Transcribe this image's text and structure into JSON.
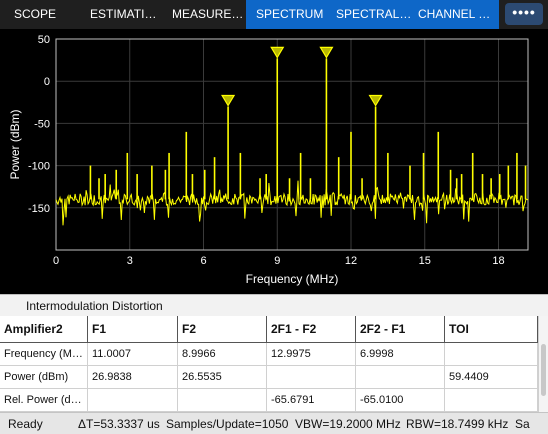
{
  "tabs": {
    "scope": "SCOPE",
    "estimation": "ESTIMATI…",
    "measurements": "MEASURE…",
    "spectrum": "SPECTRUM",
    "spectral_mask": "SPECTRAL…",
    "channel": "CHANNEL …",
    "more_icon": "more-horizontal-icon",
    "more_glyph": "••••"
  },
  "colors": {
    "trace": "#ffff00",
    "plot_bg": "#000000",
    "grid": "#3a3a3a",
    "active_tab": "#0e67c8"
  },
  "chart_data": {
    "type": "line",
    "xlabel": "Frequency (MHz)",
    "ylabel": "Power (dBm)",
    "xlim": [
      0,
      19.2
    ],
    "ylim": [
      -200,
      50
    ],
    "xticks": [
      0,
      3,
      6,
      9,
      12,
      15,
      18
    ],
    "yticks": [
      50,
      0,
      -50,
      -100,
      -150
    ],
    "grid": true,
    "noise_floor": -140,
    "peaks": [
      {
        "x": 1.4,
        "y": -100
      },
      {
        "x": 1.75,
        "y": -115
      },
      {
        "x": 2.0,
        "y": -110
      },
      {
        "x": 2.45,
        "y": -105
      },
      {
        "x": 2.9,
        "y": -85
      },
      {
        "x": 3.3,
        "y": -110
      },
      {
        "x": 3.9,
        "y": -100
      },
      {
        "x": 4.45,
        "y": -105
      },
      {
        "x": 4.6,
        "y": -85
      },
      {
        "x": 5.3,
        "y": -60
      },
      {
        "x": 5.55,
        "y": -110
      },
      {
        "x": 6.05,
        "y": -105
      },
      {
        "x": 6.45,
        "y": -90
      },
      {
        "x": 7.0,
        "y": -30
      },
      {
        "x": 7.5,
        "y": -85
      },
      {
        "x": 8.3,
        "y": -115
      },
      {
        "x": 8.55,
        "y": -110
      },
      {
        "x": 9.0,
        "y": 27
      },
      {
        "x": 9.5,
        "y": -115
      },
      {
        "x": 9.95,
        "y": -85
      },
      {
        "x": 10.35,
        "y": -115
      },
      {
        "x": 11.0,
        "y": 27
      },
      {
        "x": 11.5,
        "y": -90
      },
      {
        "x": 12.0,
        "y": -60
      },
      {
        "x": 12.45,
        "y": -115
      },
      {
        "x": 13.0,
        "y": -30
      },
      {
        "x": 13.5,
        "y": -85
      },
      {
        "x": 14.4,
        "y": -100
      },
      {
        "x": 14.95,
        "y": -85
      },
      {
        "x": 15.55,
        "y": -60
      },
      {
        "x": 16.05,
        "y": -105
      },
      {
        "x": 16.3,
        "y": -115
      },
      {
        "x": 16.5,
        "y": -110
      },
      {
        "x": 16.95,
        "y": -85
      },
      {
        "x": 17.35,
        "y": -110
      },
      {
        "x": 17.7,
        "y": -115
      },
      {
        "x": 18.05,
        "y": -110
      },
      {
        "x": 18.4,
        "y": -100
      },
      {
        "x": 18.75,
        "y": -85
      },
      {
        "x": 19.1,
        "y": -100
      }
    ],
    "markers": [
      {
        "x": 7.0,
        "y": -30
      },
      {
        "x": 9.0,
        "y": 27
      },
      {
        "x": 11.0,
        "y": 27
      },
      {
        "x": 13.0,
        "y": -30
      }
    ]
  },
  "panel": {
    "title": "Intermodulation Distortion",
    "columns": [
      "Amplifier2",
      "F1",
      "F2",
      "2F1 - F2",
      "2F2 - F1",
      "TOI"
    ],
    "rows": [
      [
        "Frequency (M…",
        "11.0007",
        "8.9966",
        "12.9975",
        "6.9998",
        ""
      ],
      [
        "Power (dBm)",
        "26.9838",
        "26.5535",
        "",
        "",
        "59.4409"
      ],
      [
        "Rel. Power (d…",
        "",
        "",
        "-65.6791",
        "-65.0100",
        ""
      ]
    ]
  },
  "status": {
    "ready": "Ready",
    "delta_t": "ΔT=53.3337 us",
    "samples": "Samples/Update=1050",
    "vbw": "VBW=19.2000 MHz",
    "rbw": "RBW=18.7499 kHz",
    "trailing": "Sa"
  }
}
